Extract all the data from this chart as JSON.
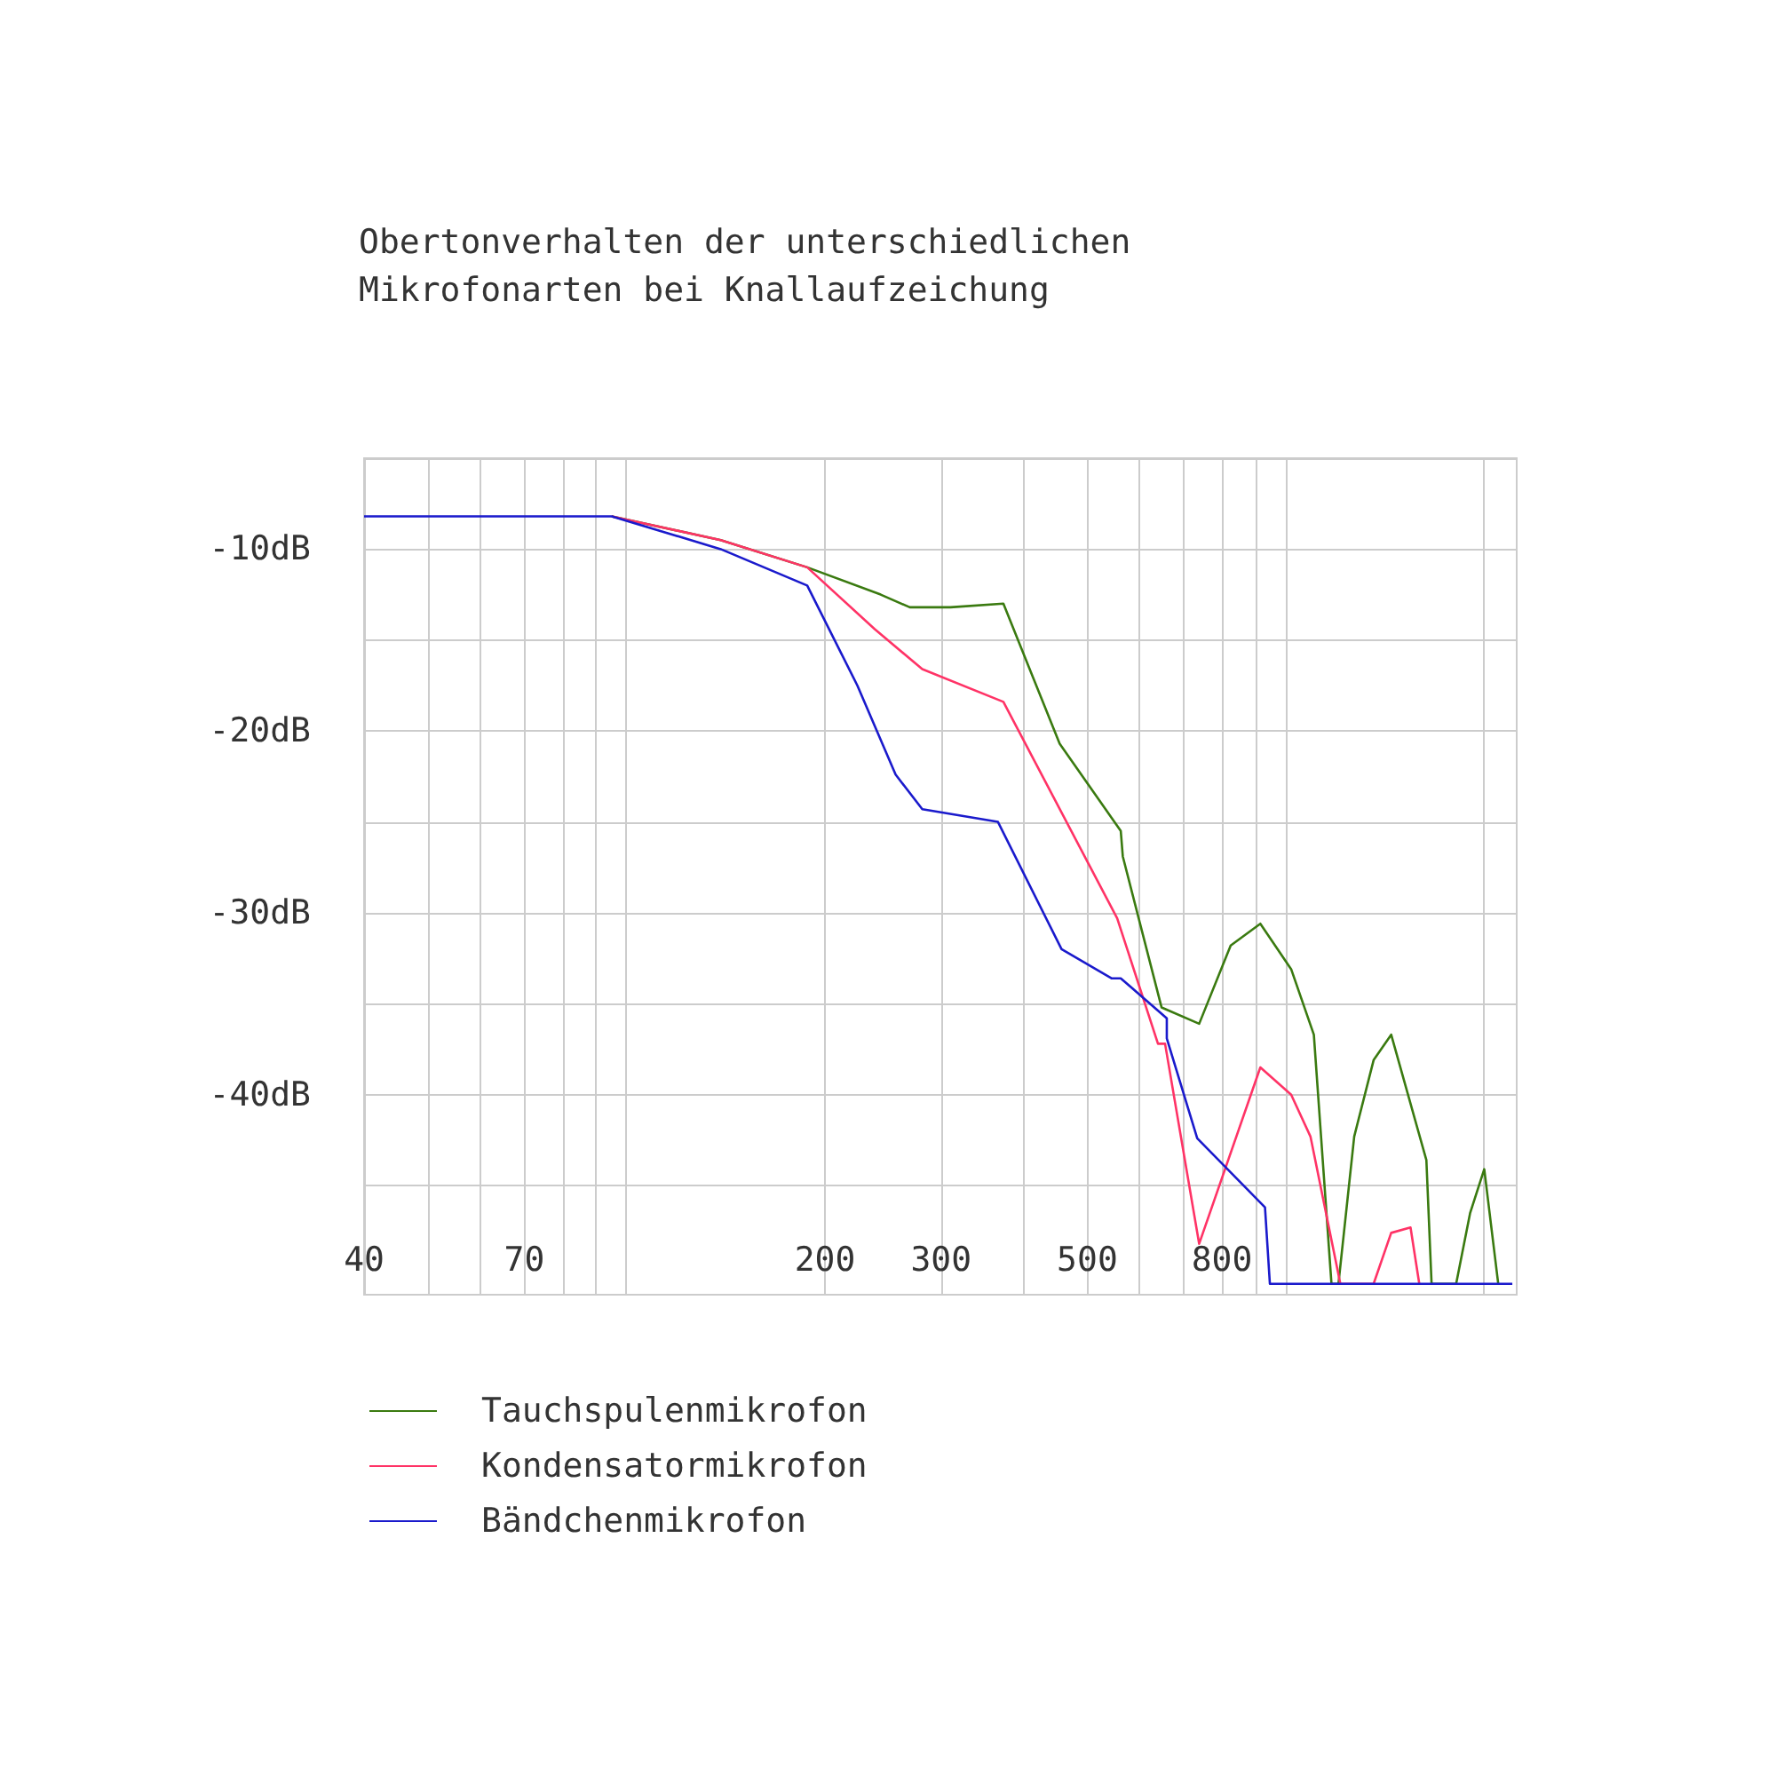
{
  "chart_data": {
    "type": "line",
    "title": "Obertonverhalten der unterschiedlichen\nMikrofonarten bei Knallaufzeichung",
    "log": "x",
    "grid": true,
    "legend": "bottom left",
    "marker": "none",
    "line_style": "solid",
    "xlim": [
      40,
      2240
    ],
    "ylim": [
      -51,
      -5
    ],
    "xticks": [
      40,
      {
        "value": 50,
        "label": null
      },
      {
        "value": 60,
        "label": null
      },
      70,
      {
        "value": 80,
        "label": null
      },
      {
        "value": 90,
        "label": null
      },
      {
        "value": 100,
        "label": null
      },
      200,
      300,
      {
        "value": 400,
        "label": null
      },
      500,
      {
        "value": 600,
        "label": null
      },
      {
        "value": 700,
        "label": null
      },
      800,
      {
        "value": 900,
        "label": null
      },
      {
        "value": 1000,
        "label": null
      },
      {
        "value": 2000,
        "label": null
      }
    ],
    "yticks": [
      {
        "value": -5,
        "label": null
      },
      {
        "value": -10,
        "label": "-10dB"
      },
      {
        "value": -15,
        "label": null
      },
      {
        "value": -20,
        "label": "-20dB"
      },
      {
        "value": -25,
        "label": null
      },
      {
        "value": -30,
        "label": "-30dB"
      },
      {
        "value": -35,
        "label": null
      },
      {
        "value": -40,
        "label": "-40dB"
      },
      {
        "value": -45,
        "label": null
      }
    ],
    "series": [
      {
        "name": "Tauchspulenmikrofon",
        "color": "#3a7a10",
        "x": [
          95,
          139,
          188,
          243,
          269,
          310,
          373,
          454,
          562,
          566,
          648,
          739,
          825,
          915,
          1019,
          1103,
          1173,
          1202,
          1270,
          1359,
          1445,
          1634,
          1664,
          1813,
          1904,
          2000,
          2100
        ],
        "values": [
          -8.2,
          -9.5,
          -11.0,
          -12.5,
          -13.2,
          -13.2,
          -13.0,
          -20.7,
          -25.5,
          -26.9,
          -35.2,
          -36.1,
          -31.8,
          -30.6,
          -33.1,
          -36.7,
          -50.4,
          -50.4,
          -42.3,
          -38.1,
          -36.7,
          -43.6,
          -50.4,
          -50.4,
          -46.5,
          -44.1,
          -50.4
        ]
      },
      {
        "name": "Kondensatormikrofon",
        "color": "#ff3366",
        "x": [
          95,
          139,
          188,
          238,
          281,
          373,
          555,
          640,
          656,
          739,
          915,
          1019,
          1090,
          1210,
          1359,
          1445,
          1546,
          1594
        ],
        "values": [
          -8.2,
          -9.5,
          -11.0,
          -14.4,
          -16.6,
          -18.4,
          -30.3,
          -37.2,
          -37.2,
          -48.2,
          -38.5,
          -40.0,
          -42.3,
          -50.4,
          -50.4,
          -47.6,
          -47.3,
          -50.4
        ]
      },
      {
        "name": "Bändchenmikrofon",
        "color": "#1a1acc",
        "x": [
          40,
          95,
          139,
          188,
          224,
          256,
          281,
          366,
          457,
          544,
          562,
          660,
          660,
          734,
          930,
          946,
          2206
        ],
        "values": [
          -8.2,
          -8.2,
          -10.0,
          -12.0,
          -17.5,
          -22.4,
          -24.3,
          -25.0,
          -32.0,
          -33.6,
          -33.6,
          -35.8,
          -36.9,
          -42.4,
          -46.2,
          -50.4,
          -50.4
        ]
      }
    ]
  }
}
